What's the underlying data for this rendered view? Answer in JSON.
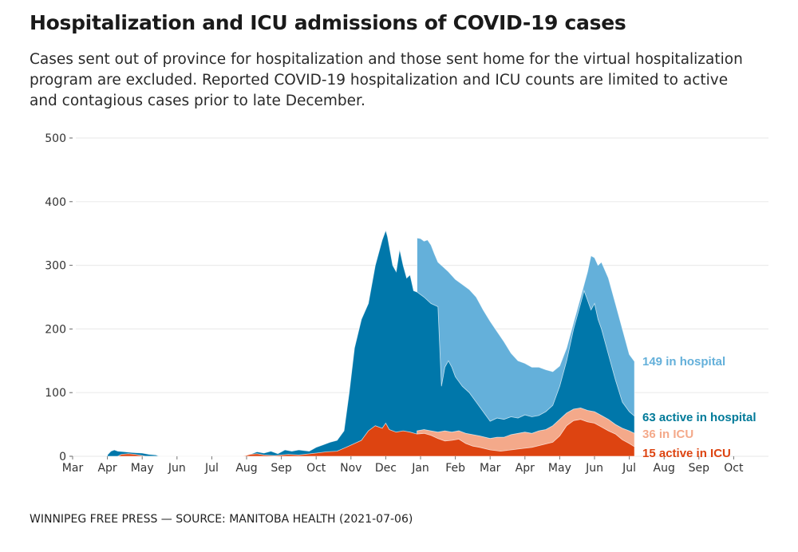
{
  "header": {
    "title": "Hospitalization and ICU admissions of COVID-19 cases",
    "subtitle": "Cases sent out of province for hospitalization and those sent home for the virtual hospitalization program are excluded. Reported COVID-19 hospitalization and ICU counts are limited to active and contagious cases prior to late December."
  },
  "footer": {
    "credit": "WINNIPEG FREE PRESS — SOURCE: MANITOBA HEALTH (2021-07-06)"
  },
  "chart_data": {
    "type": "area",
    "title": "Hospitalization and ICU admissions of COVID-19 cases",
    "xlabel": "",
    "ylabel": "",
    "ylim": [
      0,
      500
    ],
    "yticks": [
      0,
      100,
      200,
      300,
      400,
      500
    ],
    "grid": true,
    "x_start": "2020-03",
    "x_end": "2021-10",
    "xtick_labels": [
      "Mar",
      "Apr",
      "May",
      "Jun",
      "Jul",
      "Aug",
      "Sep",
      "Oct",
      "Nov",
      "Dec",
      "Jan",
      "Feb",
      "Mar",
      "Apr",
      "May",
      "Jun",
      "Jul",
      "Aug",
      "Sep",
      "Oct"
    ],
    "x_unit": "months since 2020-03-01",
    "colors": {
      "in_hospital": "#64b0da",
      "active_in_hospital": "#0077aa",
      "in_icu": "#f4a98a",
      "active_in_icu": "#dd4411"
    },
    "series": [
      {
        "name": "In hospital",
        "key": "in_hospital",
        "end_label": "149 in hospital",
        "end_value": 149,
        "points": [
          [
            9.9,
            343
          ],
          [
            10.0,
            342
          ],
          [
            10.1,
            338
          ],
          [
            10.2,
            340
          ],
          [
            10.3,
            332
          ],
          [
            10.4,
            318
          ],
          [
            10.5,
            305
          ],
          [
            10.6,
            300
          ],
          [
            10.8,
            290
          ],
          [
            11.0,
            278
          ],
          [
            11.2,
            270
          ],
          [
            11.4,
            262
          ],
          [
            11.6,
            250
          ],
          [
            11.8,
            230
          ],
          [
            12.0,
            212
          ],
          [
            12.2,
            196
          ],
          [
            12.4,
            180
          ],
          [
            12.6,
            162
          ],
          [
            12.8,
            150
          ],
          [
            13.0,
            146
          ],
          [
            13.2,
            140
          ],
          [
            13.4,
            140
          ],
          [
            13.6,
            136
          ],
          [
            13.8,
            133
          ],
          [
            14.0,
            142
          ],
          [
            14.2,
            170
          ],
          [
            14.4,
            210
          ],
          [
            14.6,
            250
          ],
          [
            14.8,
            290
          ],
          [
            14.9,
            315
          ],
          [
            15.0,
            312
          ],
          [
            15.1,
            300
          ],
          [
            15.2,
            305
          ],
          [
            15.4,
            280
          ],
          [
            15.6,
            240
          ],
          [
            15.8,
            200
          ],
          [
            16.0,
            160
          ],
          [
            16.15,
            149
          ]
        ]
      },
      {
        "name": "Active in hospital",
        "key": "active_in_hospital",
        "end_label": "63 active in hospital",
        "end_value": 63,
        "points": [
          [
            1.0,
            2
          ],
          [
            1.1,
            8
          ],
          [
            1.2,
            10
          ],
          [
            1.3,
            8
          ],
          [
            1.5,
            7
          ],
          [
            1.7,
            6
          ],
          [
            2.0,
            5
          ],
          [
            2.2,
            3
          ],
          [
            2.4,
            2
          ],
          [
            2.5,
            0
          ],
          [
            5.0,
            0
          ],
          [
            5.1,
            3
          ],
          [
            5.3,
            7
          ],
          [
            5.5,
            5
          ],
          [
            5.7,
            8
          ],
          [
            5.9,
            4
          ],
          [
            6.1,
            10
          ],
          [
            6.3,
            8
          ],
          [
            6.5,
            10
          ],
          [
            6.8,
            8
          ],
          [
            7.0,
            14
          ],
          [
            7.2,
            18
          ],
          [
            7.4,
            22
          ],
          [
            7.6,
            25
          ],
          [
            7.8,
            40
          ],
          [
            7.95,
            100
          ],
          [
            8.1,
            170
          ],
          [
            8.3,
            215
          ],
          [
            8.5,
            240
          ],
          [
            8.7,
            300
          ],
          [
            8.9,
            340
          ],
          [
            9.0,
            355
          ],
          [
            9.05,
            345
          ],
          [
            9.2,
            300
          ],
          [
            9.3,
            290
          ],
          [
            9.4,
            325
          ],
          [
            9.5,
            300
          ],
          [
            9.6,
            280
          ],
          [
            9.7,
            285
          ],
          [
            9.8,
            260
          ],
          [
            9.9,
            258
          ],
          [
            10.1,
            250
          ],
          [
            10.3,
            240
          ],
          [
            10.5,
            235
          ],
          [
            10.6,
            110
          ],
          [
            10.7,
            140
          ],
          [
            10.8,
            150
          ],
          [
            10.9,
            140
          ],
          [
            11.0,
            125
          ],
          [
            11.2,
            110
          ],
          [
            11.4,
            100
          ],
          [
            11.6,
            85
          ],
          [
            11.8,
            70
          ],
          [
            12.0,
            55
          ],
          [
            12.2,
            60
          ],
          [
            12.4,
            58
          ],
          [
            12.6,
            62
          ],
          [
            12.8,
            60
          ],
          [
            13.0,
            65
          ],
          [
            13.2,
            62
          ],
          [
            13.4,
            64
          ],
          [
            13.6,
            70
          ],
          [
            13.8,
            80
          ],
          [
            14.0,
            110
          ],
          [
            14.2,
            150
          ],
          [
            14.4,
            200
          ],
          [
            14.6,
            240
          ],
          [
            14.7,
            260
          ],
          [
            14.8,
            245
          ],
          [
            14.9,
            230
          ],
          [
            15.0,
            240
          ],
          [
            15.1,
            215
          ],
          [
            15.2,
            200
          ],
          [
            15.4,
            160
          ],
          [
            15.6,
            120
          ],
          [
            15.8,
            85
          ],
          [
            16.0,
            70
          ],
          [
            16.15,
            63
          ]
        ]
      },
      {
        "name": "In ICU",
        "key": "in_icu",
        "end_label": "36 in ICU",
        "end_value": 36,
        "points": [
          [
            9.9,
            40
          ],
          [
            10.1,
            42
          ],
          [
            10.3,
            40
          ],
          [
            10.5,
            38
          ],
          [
            10.7,
            40
          ],
          [
            10.9,
            38
          ],
          [
            11.1,
            40
          ],
          [
            11.3,
            36
          ],
          [
            11.5,
            34
          ],
          [
            11.7,
            32
          ],
          [
            12.0,
            28
          ],
          [
            12.2,
            30
          ],
          [
            12.4,
            30
          ],
          [
            12.6,
            34
          ],
          [
            12.8,
            36
          ],
          [
            13.0,
            38
          ],
          [
            13.2,
            36
          ],
          [
            13.4,
            40
          ],
          [
            13.6,
            42
          ],
          [
            13.8,
            48
          ],
          [
            14.0,
            58
          ],
          [
            14.2,
            68
          ],
          [
            14.4,
            74
          ],
          [
            14.6,
            76
          ],
          [
            14.8,
            72
          ],
          [
            15.0,
            70
          ],
          [
            15.2,
            64
          ],
          [
            15.4,
            58
          ],
          [
            15.6,
            50
          ],
          [
            15.8,
            44
          ],
          [
            16.0,
            40
          ],
          [
            16.15,
            36
          ]
        ]
      },
      {
        "name": "Active in ICU",
        "key": "active_in_icu",
        "end_label": "15 active in ICU",
        "end_value": 15,
        "points": [
          [
            1.3,
            0
          ],
          [
            1.4,
            3
          ],
          [
            1.6,
            4
          ],
          [
            1.8,
            3
          ],
          [
            2.0,
            1
          ],
          [
            2.1,
            0
          ],
          [
            4.9,
            0
          ],
          [
            5.1,
            3
          ],
          [
            5.3,
            4
          ],
          [
            5.5,
            2
          ],
          [
            5.8,
            1
          ],
          [
            6.2,
            3
          ],
          [
            6.5,
            2
          ],
          [
            7.0,
            5
          ],
          [
            7.3,
            7
          ],
          [
            7.6,
            8
          ],
          [
            7.9,
            15
          ],
          [
            8.1,
            20
          ],
          [
            8.3,
            25
          ],
          [
            8.5,
            40
          ],
          [
            8.7,
            48
          ],
          [
            8.9,
            44
          ],
          [
            9.0,
            52
          ],
          [
            9.1,
            42
          ],
          [
            9.3,
            38
          ],
          [
            9.5,
            40
          ],
          [
            9.7,
            38
          ],
          [
            9.9,
            35
          ],
          [
            10.1,
            36
          ],
          [
            10.3,
            33
          ],
          [
            10.5,
            28
          ],
          [
            10.7,
            24
          ],
          [
            10.9,
            25
          ],
          [
            11.1,
            27
          ],
          [
            11.3,
            20
          ],
          [
            11.5,
            16
          ],
          [
            11.7,
            14
          ],
          [
            12.0,
            10
          ],
          [
            12.3,
            8
          ],
          [
            12.6,
            10
          ],
          [
            12.9,
            12
          ],
          [
            13.2,
            14
          ],
          [
            13.5,
            18
          ],
          [
            13.8,
            22
          ],
          [
            14.0,
            32
          ],
          [
            14.2,
            48
          ],
          [
            14.4,
            56
          ],
          [
            14.6,
            58
          ],
          [
            14.8,
            54
          ],
          [
            15.0,
            52
          ],
          [
            15.2,
            46
          ],
          [
            15.4,
            40
          ],
          [
            15.6,
            35
          ],
          [
            15.8,
            26
          ],
          [
            16.0,
            20
          ],
          [
            16.15,
            15
          ]
        ]
      }
    ]
  }
}
